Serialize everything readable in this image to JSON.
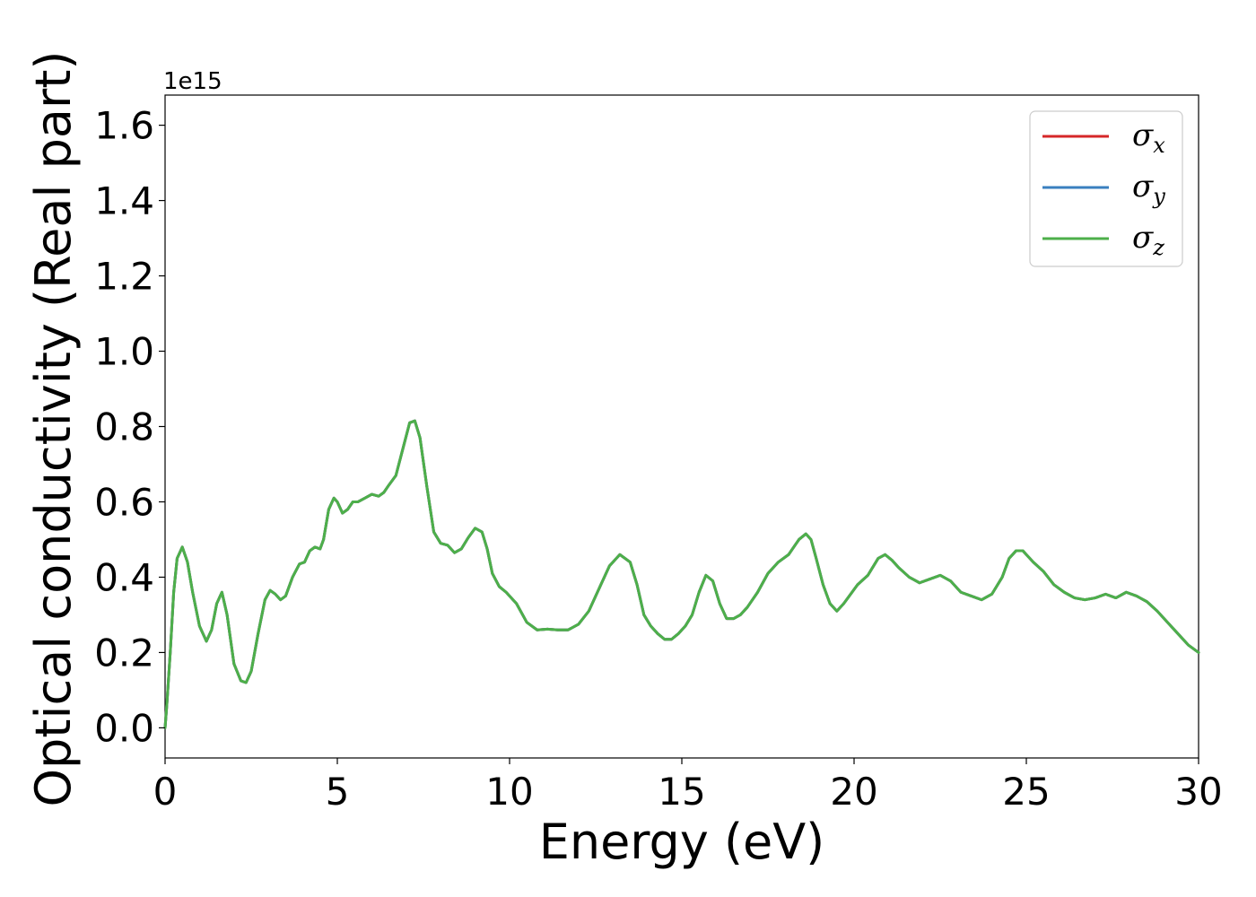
{
  "chart_data": {
    "type": "line",
    "xlabel": "Energy (eV)",
    "ylabel": "Optical conductivity (Real part)",
    "y_offset_text": "1e15",
    "xlim": [
      0,
      30
    ],
    "ylim": [
      -0.08,
      1.68
    ],
    "x_ticks": [
      0,
      5,
      10,
      15,
      20,
      25,
      30
    ],
    "x_tick_labels": [
      "0",
      "5",
      "10",
      "15",
      "20",
      "25",
      "30"
    ],
    "y_ticks": [
      0.0,
      0.2,
      0.4,
      0.6,
      0.8,
      1.0,
      1.2,
      1.4,
      1.6
    ],
    "y_tick_labels": [
      "0.0",
      "0.2",
      "0.4",
      "0.6",
      "0.8",
      "1.0",
      "1.2",
      "1.4",
      "1.6"
    ],
    "grid": false,
    "legend_position": "top-right",
    "series": [
      {
        "name": "σx",
        "symbol": "σ",
        "subscript": "x",
        "color": "#d62728"
      },
      {
        "name": "σy",
        "symbol": "σ",
        "subscript": "y",
        "color": "#3a7fbf"
      },
      {
        "name": "σz",
        "symbol": "σ",
        "subscript": "z",
        "color": "#4daf4a"
      }
    ],
    "x": [
      0,
      0.05,
      0.15,
      0.25,
      0.35,
      0.5,
      0.65,
      0.8,
      1.0,
      1.2,
      1.35,
      1.5,
      1.65,
      1.8,
      2.0,
      2.2,
      2.35,
      2.5,
      2.7,
      2.9,
      3.05,
      3.2,
      3.35,
      3.5,
      3.7,
      3.9,
      4.05,
      4.2,
      4.35,
      4.5,
      4.6,
      4.75,
      4.9,
      5.0,
      5.15,
      5.3,
      5.45,
      5.6,
      5.8,
      6.0,
      6.2,
      6.35,
      6.5,
      6.7,
      6.9,
      7.1,
      7.25,
      7.4,
      7.6,
      7.8,
      8.0,
      8.2,
      8.4,
      8.6,
      8.8,
      9.0,
      9.2,
      9.35,
      9.5,
      9.7,
      9.9,
      10.2,
      10.5,
      10.8,
      11.1,
      11.4,
      11.7,
      12.0,
      12.3,
      12.6,
      12.9,
      13.2,
      13.5,
      13.7,
      13.9,
      14.1,
      14.3,
      14.5,
      14.7,
      14.9,
      15.1,
      15.3,
      15.5,
      15.7,
      15.9,
      16.1,
      16.3,
      16.5,
      16.7,
      16.9,
      17.2,
      17.5,
      17.8,
      18.1,
      18.4,
      18.6,
      18.75,
      18.9,
      19.1,
      19.3,
      19.5,
      19.7,
      19.9,
      20.1,
      20.4,
      20.7,
      20.9,
      21.1,
      21.3,
      21.6,
      21.9,
      22.2,
      22.5,
      22.8,
      23.1,
      23.4,
      23.7,
      24.0,
      24.3,
      24.5,
      24.7,
      24.9,
      25.2,
      25.5,
      25.8,
      26.1,
      26.4,
      26.7,
      27.0,
      27.3,
      27.6,
      27.9,
      28.2,
      28.5,
      28.8,
      29.1,
      29.4,
      29.7,
      30.0
    ],
    "y": [
      0.0,
      0.06,
      0.2,
      0.36,
      0.45,
      0.48,
      0.44,
      0.36,
      0.27,
      0.23,
      0.26,
      0.33,
      0.36,
      0.3,
      0.17,
      0.125,
      0.12,
      0.15,
      0.25,
      0.34,
      0.365,
      0.355,
      0.34,
      0.35,
      0.4,
      0.435,
      0.44,
      0.47,
      0.48,
      0.475,
      0.5,
      0.58,
      0.61,
      0.6,
      0.57,
      0.58,
      0.6,
      0.6,
      0.61,
      0.62,
      0.615,
      0.625,
      0.645,
      0.67,
      0.74,
      0.81,
      0.815,
      0.77,
      0.64,
      0.52,
      0.49,
      0.485,
      0.465,
      0.475,
      0.505,
      0.53,
      0.52,
      0.475,
      0.41,
      0.375,
      0.36,
      0.33,
      0.28,
      0.26,
      0.262,
      0.26,
      0.26,
      0.275,
      0.31,
      0.37,
      0.43,
      0.46,
      0.44,
      0.38,
      0.3,
      0.27,
      0.25,
      0.235,
      0.235,
      0.25,
      0.27,
      0.3,
      0.36,
      0.405,
      0.39,
      0.33,
      0.29,
      0.29,
      0.3,
      0.32,
      0.36,
      0.41,
      0.44,
      0.46,
      0.5,
      0.515,
      0.5,
      0.45,
      0.38,
      0.33,
      0.31,
      0.33,
      0.355,
      0.38,
      0.405,
      0.45,
      0.46,
      0.445,
      0.425,
      0.4,
      0.385,
      0.395,
      0.405,
      0.39,
      0.36,
      0.35,
      0.34,
      0.355,
      0.4,
      0.45,
      0.47,
      0.47,
      0.44,
      0.415,
      0.38,
      0.36,
      0.345,
      0.34,
      0.345,
      0.355,
      0.345,
      0.36,
      0.35,
      0.335,
      0.31,
      0.28,
      0.25,
      0.22,
      0.2
    ]
  }
}
